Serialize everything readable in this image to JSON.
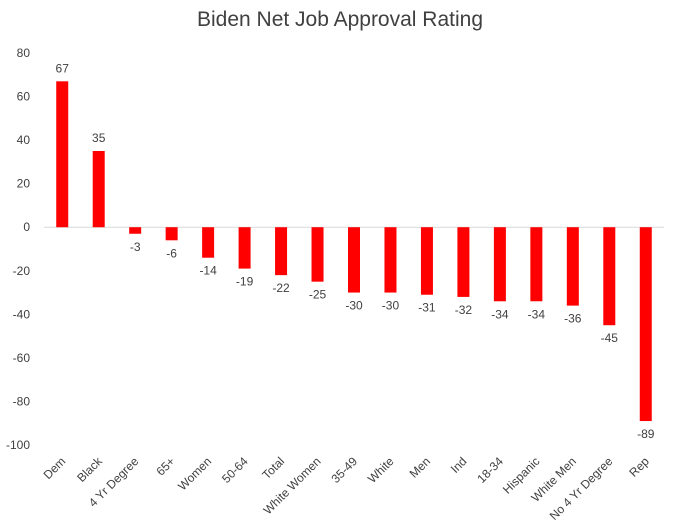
{
  "chart_data": {
    "type": "bar",
    "title": "Biden Net Job Approval Rating",
    "xlabel": "",
    "ylabel": "",
    "ylim": [
      -100,
      80
    ],
    "yticks": [
      80,
      60,
      40,
      20,
      0,
      -20,
      -40,
      -60,
      -80,
      -100
    ],
    "categories": [
      "Dem",
      "Black",
      "4 Yr Degree",
      "65+",
      "Women",
      "50-64",
      "Total",
      "White Women",
      "35-49",
      "White",
      "Men",
      "Ind",
      "18-34",
      "Hispanic",
      "White Men",
      "No 4 Yr Degree",
      "Rep"
    ],
    "values": [
      67,
      35,
      -3,
      -6,
      -14,
      -19,
      -22,
      -25,
      -30,
      -30,
      -31,
      -32,
      -34,
      -34,
      -36,
      -45,
      -89
    ],
    "bar_color": "#FF0000",
    "grid": false,
    "legend": "none"
  }
}
